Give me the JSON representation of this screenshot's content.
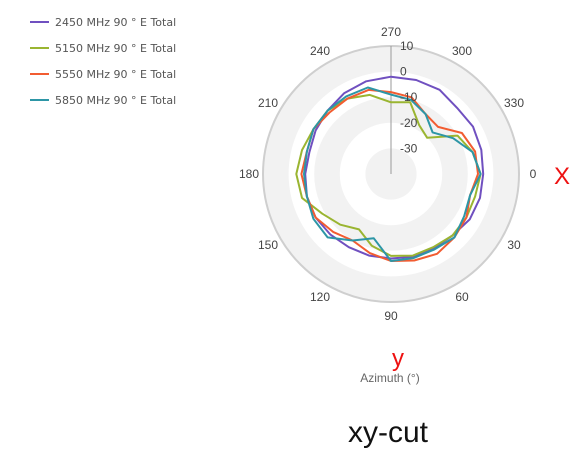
{
  "chart_data": {
    "type": "polar-line",
    "axis_title": "Azimuth (°)",
    "angle_ticks": [
      "0",
      "30",
      "60",
      "90",
      "120",
      "150",
      "180",
      "210",
      "240",
      "270",
      "300",
      "330"
    ],
    "radial_ticks": [
      "10",
      "0",
      "-10",
      "-20",
      "-30"
    ],
    "radial_range": [
      -40,
      10
    ],
    "angle_direction": "clockwise, 0° at right",
    "grid": true,
    "legend_position": "top-left",
    "series": [
      {
        "name": "2450 MHz 90 ° E Total",
        "color": "#7050c0",
        "theta": [
          0,
          15,
          30,
          45,
          60,
          75,
          90,
          105,
          120,
          135,
          150,
          165,
          180,
          195,
          210,
          225,
          240,
          255,
          270,
          285,
          300,
          315,
          330,
          345
        ],
        "r": [
          -4,
          -4,
          -4.5,
          -6,
          -6.5,
          -6.5,
          -7,
          -7,
          -7,
          -6.5,
          -6,
          -6,
          -6.5,
          -7,
          -6,
          -5,
          -3.5,
          -2.5,
          -2,
          -2,
          -2,
          -3.5,
          -3,
          -3.5
        ]
      },
      {
        "name": "5150 MHz 90 ° E Total",
        "color": "#9ab531",
        "theta": [
          0,
          15,
          30,
          45,
          60,
          75,
          90,
          105,
          120,
          135,
          150,
          165,
          180,
          195,
          210,
          225,
          240,
          255,
          270,
          285,
          300,
          315,
          330,
          345
        ],
        "r": [
          -5,
          -6,
          -6,
          -6,
          -7,
          -7,
          -8,
          -11,
          -15,
          -12,
          -9,
          -4,
          -3,
          -4,
          -5,
          -5,
          -6,
          -8,
          -12,
          -11,
          -18,
          -20,
          -10,
          -7
        ]
      },
      {
        "name": "5550 MHz 90 ° E Total",
        "color": "#f25c31",
        "theta": [
          0,
          15,
          30,
          45,
          60,
          75,
          90,
          105,
          120,
          135,
          150,
          165,
          180,
          195,
          210,
          225,
          240,
          255,
          270,
          285,
          300,
          315,
          330,
          345
        ],
        "r": [
          -6,
          -8,
          -6,
          -5,
          -4,
          -5,
          -6,
          -8,
          -10,
          -8,
          -6,
          -6,
          -5,
          -6,
          -5,
          -6,
          -6,
          -6,
          -8,
          -9,
          -13,
          -14,
          -8,
          -6
        ]
      },
      {
        "name": "5850 MHz 90 ° E Total",
        "color": "#2d96a6",
        "theta": [
          0,
          15,
          30,
          45,
          60,
          75,
          90,
          105,
          120,
          135,
          150,
          165,
          180,
          195,
          210,
          225,
          240,
          255,
          270,
          285,
          300,
          315,
          330,
          345
        ],
        "r": [
          -5,
          -8,
          -7,
          -5,
          -6,
          -6,
          -6,
          -14,
          -10,
          -5,
          -5,
          -6,
          -6,
          -6,
          -5,
          -5,
          -5,
          -5,
          -9,
          -10,
          -13,
          -17,
          -12,
          -7
        ]
      }
    ]
  },
  "annotations": {
    "x_marker": "X",
    "y_marker": "y",
    "caption": "xy-cut"
  }
}
